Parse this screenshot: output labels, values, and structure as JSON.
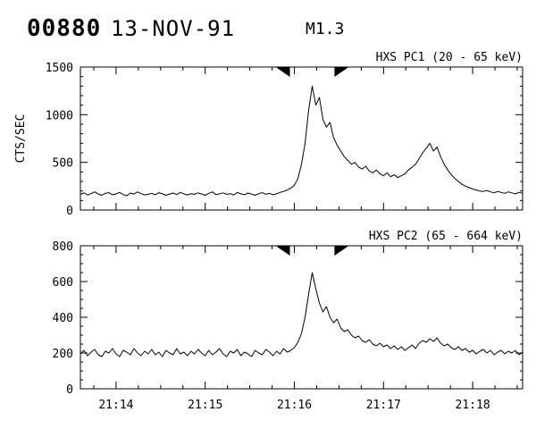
{
  "header": {
    "event_id": "00880",
    "date": "13-NOV-91",
    "flare_class": "M1.3"
  },
  "colors": {
    "foreground": "#000000",
    "background": "#ffffff"
  },
  "x_axis": {
    "range": [
      13.6,
      18.56
    ],
    "tick_values": [
      14,
      15,
      16,
      17,
      18
    ],
    "tick_labels": [
      "21:14",
      "21:15",
      "21:16",
      "21:17",
      "21:18"
    ],
    "minor_step": 0.25,
    "unit": "time (HH:MM), minutes after 21:00"
  },
  "markers": {
    "description": "flare interval flag triangles at top of each panel",
    "times": [
      15.95,
      16.45
    ]
  },
  "chart_data": [
    {
      "type": "line",
      "title": "HXS PC1 (20 - 65 keV)",
      "ylabel": "CTS/SEC",
      "ylim": [
        0,
        1500
      ],
      "yticks": [
        0,
        500,
        1000,
        1500
      ],
      "y_minor_step": 100,
      "x_start": 13.6,
      "x_step": 0.04,
      "values": [
        165,
        180,
        158,
        172,
        190,
        168,
        155,
        175,
        182,
        160,
        170,
        185,
        162,
        150,
        178,
        168,
        190,
        172,
        158,
        165,
        175,
        160,
        182,
        170,
        155,
        168,
        178,
        162,
        185,
        170,
        158,
        172,
        165,
        180,
        168,
        155,
        175,
        190,
        162,
        170,
        180,
        165,
        172,
        158,
        185,
        170,
        160,
        178,
        168,
        155,
        172,
        182,
        165,
        175,
        160,
        170,
        185,
        195,
        210,
        230,
        260,
        330,
        480,
        700,
        1050,
        1300,
        1100,
        1180,
        950,
        870,
        920,
        760,
        680,
        620,
        560,
        520,
        480,
        500,
        450,
        430,
        460,
        410,
        390,
        420,
        380,
        360,
        390,
        350,
        370,
        340,
        360,
        380,
        420,
        450,
        480,
        540,
        600,
        650,
        700,
        620,
        660,
        560,
        480,
        420,
        370,
        330,
        300,
        270,
        250,
        235,
        220,
        210,
        200,
        195,
        205,
        190,
        180,
        195,
        185,
        175,
        190,
        180,
        170,
        185,
        175
      ]
    },
    {
      "type": "line",
      "title": "HXS PC2 (65 - 664 keV)",
      "ylabel": "CTS/SEC",
      "ylim": [
        0,
        800
      ],
      "yticks": [
        0,
        200,
        400,
        600,
        800
      ],
      "y_minor_step": 50,
      "x_start": 13.6,
      "x_step": 0.04,
      "values": [
        195,
        215,
        185,
        205,
        220,
        190,
        180,
        210,
        200,
        225,
        195,
        180,
        215,
        205,
        190,
        225,
        200,
        185,
        210,
        195,
        220,
        190,
        205,
        180,
        215,
        200,
        190,
        225,
        195,
        205,
        185,
        210,
        195,
        220,
        200,
        185,
        215,
        190,
        205,
        225,
        195,
        180,
        210,
        200,
        220,
        185,
        205,
        195,
        180,
        215,
        200,
        190,
        220,
        205,
        185,
        210,
        195,
        225,
        205,
        215,
        230,
        260,
        310,
        400,
        530,
        650,
        560,
        480,
        430,
        460,
        400,
        370,
        390,
        340,
        320,
        330,
        300,
        285,
        295,
        270,
        260,
        275,
        250,
        240,
        255,
        235,
        245,
        225,
        240,
        220,
        235,
        215,
        230,
        245,
        225,
        255,
        270,
        260,
        280,
        265,
        285,
        255,
        240,
        250,
        230,
        220,
        235,
        215,
        225,
        205,
        215,
        195,
        210,
        220,
        200,
        215,
        190,
        205,
        215,
        195,
        210,
        200,
        215,
        190,
        205
      ]
    }
  ]
}
